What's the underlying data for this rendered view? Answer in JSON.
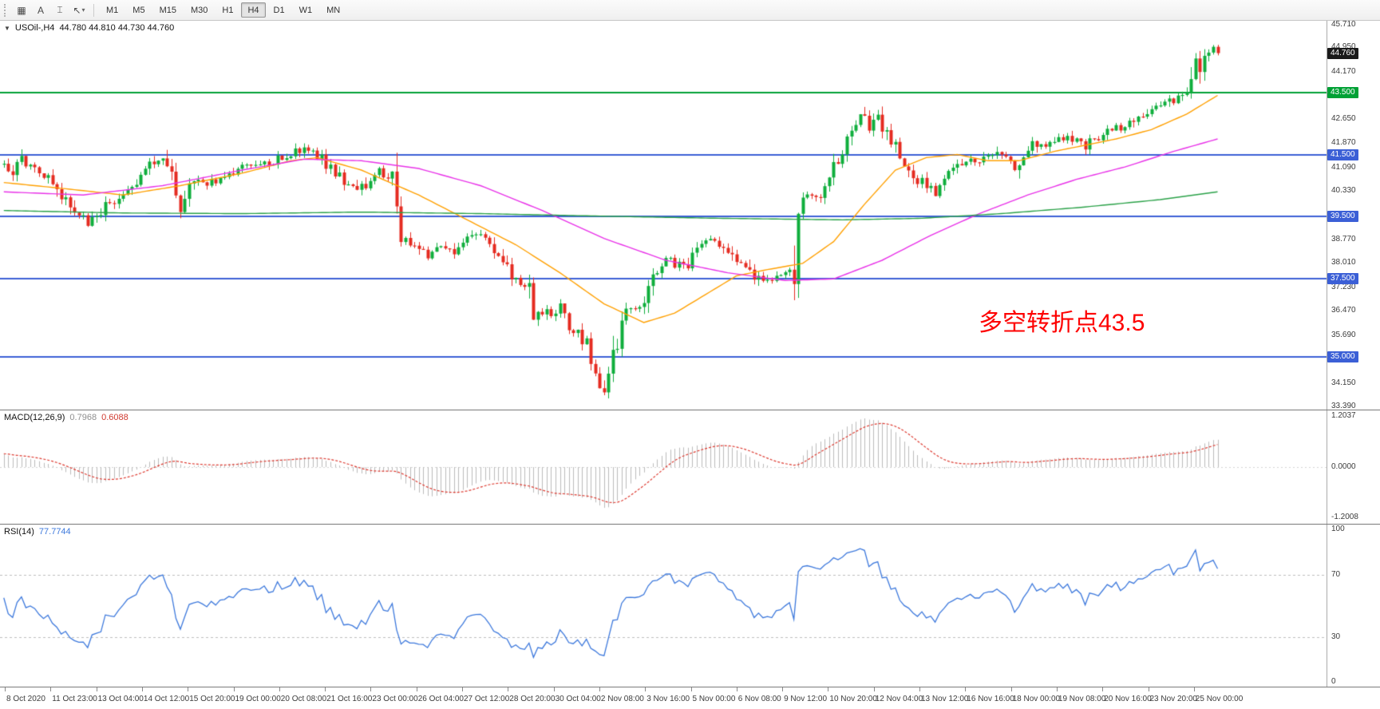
{
  "toolbar": {
    "tools": [
      {
        "name": "chart-grid",
        "glyph": "▦"
      },
      {
        "name": "text-label",
        "glyph": "A"
      },
      {
        "name": "text-cursor",
        "glyph": "⌶"
      },
      {
        "name": "arrow-objects",
        "glyph": "↖",
        "caret": "▾"
      }
    ],
    "timeframes": [
      "M1",
      "M5",
      "M15",
      "M30",
      "H1",
      "H4",
      "D1",
      "W1",
      "MN"
    ],
    "active_timeframe": "H4"
  },
  "chart": {
    "marker_glyph": "▼",
    "symbol_period": "USOil-,H4",
    "ohlc": "44.780 44.810 44.730 44.760"
  },
  "macd": {
    "label": "MACD(12,26,9)",
    "value_main": "0.7968",
    "value_signal": "0.6088",
    "scale": [
      "1.2037",
      "0.0000",
      "-1.2008"
    ],
    "histogram_color": "#BBBBBB",
    "signal_color": "#DD3A30"
  },
  "rsi": {
    "label": "RSI(14)",
    "value": "77.7744",
    "levels": [
      "100",
      "70",
      "30",
      "0"
    ],
    "line_color": "#3C78DC"
  },
  "price_axis": {
    "tick_labels": [
      "45.710",
      "44.950",
      "44.170",
      "42.650",
      "41.870",
      "41.090",
      "40.330",
      "38.770",
      "38.010",
      "37.230",
      "36.470",
      "35.690",
      "34.150",
      "33.390"
    ],
    "boxes": [
      {
        "label": "44.760",
        "color": "#1A1A1A",
        "name": "current-price-box"
      },
      {
        "label": "43.500",
        "color": "#00A135",
        "name": "hline-price-box"
      },
      {
        "label": "41.500",
        "color": "#3B5FD6",
        "name": "hline-price-box"
      },
      {
        "label": "39.500",
        "color": "#3B5FD6",
        "name": "hline-price-box"
      },
      {
        "label": "37.500",
        "color": "#3B5FD6",
        "name": "hline-price-box"
      },
      {
        "label": "35.000",
        "color": "#3B5FD6",
        "name": "hline-price-box"
      }
    ]
  },
  "chart_data": {
    "type": "candlestick",
    "symbol": "USOil-",
    "timeframe": "H4",
    "current_bar": {
      "open": 44.78,
      "high": 44.81,
      "low": 44.73,
      "close": 44.76
    },
    "last_close": 44.76,
    "bar_count": 276,
    "bar_spacing": 5.53,
    "up_color": "#0FAE3C",
    "down_color": "#E52B20",
    "y_axis": {
      "min": 33.3,
      "max": 45.8
    },
    "horizontal_lines": [
      {
        "price": 43.5,
        "color": "#00A135"
      },
      {
        "price": 41.5,
        "color": "#3B5FD6"
      },
      {
        "price": 39.5,
        "color": "#3B5FD6"
      },
      {
        "price": 37.5,
        "color": "#3B5FD6"
      },
      {
        "price": 35.0,
        "color": "#3B5FD6"
      }
    ],
    "annotation": {
      "text": "多空转折点43.5",
      "color": "#FE0000",
      "meaning": "bull/bear turning point 43.5"
    },
    "price_waypoints": [
      [
        0,
        41.2
      ],
      [
        2,
        41.0
      ],
      [
        4,
        41.4
      ],
      [
        6,
        41.1
      ],
      [
        8,
        40.9
      ],
      [
        11,
        40.6
      ],
      [
        14,
        40.0
      ],
      [
        17,
        39.5
      ],
      [
        19,
        39.3
      ],
      [
        21,
        39.5
      ],
      [
        23,
        39.9
      ],
      [
        27,
        40.2
      ],
      [
        30,
        40.6
      ],
      [
        32,
        41.0
      ],
      [
        34,
        41.3
      ],
      [
        36,
        41.4
      ],
      [
        38,
        40.9
      ],
      [
        40,
        39.7
      ],
      [
        43,
        40.7
      ],
      [
        46,
        40.5
      ],
      [
        50,
        40.8
      ],
      [
        53,
        41.1
      ],
      [
        57,
        41.1
      ],
      [
        60,
        41.2
      ],
      [
        63,
        41.4
      ],
      [
        66,
        41.6
      ],
      [
        68,
        41.8
      ],
      [
        70,
        41.6
      ],
      [
        73,
        41.2
      ],
      [
        75,
        40.9
      ],
      [
        78,
        40.5
      ],
      [
        80,
        40.3
      ],
      [
        82,
        40.6
      ],
      [
        84,
        41.0
      ],
      [
        86,
        40.9
      ],
      [
        88,
        40.7
      ],
      [
        90,
        38.9
      ],
      [
        93,
        38.6
      ],
      [
        96,
        38.3
      ],
      [
        99,
        38.5
      ],
      [
        102,
        38.4
      ],
      [
        104,
        38.8
      ],
      [
        106,
        39.0
      ],
      [
        108,
        38.9
      ],
      [
        111,
        38.4
      ],
      [
        113,
        38.0
      ],
      [
        115,
        37.6
      ],
      [
        117,
        37.4
      ],
      [
        119,
        37.2
      ],
      [
        120,
        36.2
      ],
      [
        122,
        36.5
      ],
      [
        124,
        36.3
      ],
      [
        126,
        36.6
      ],
      [
        128,
        36.0
      ],
      [
        130,
        35.8
      ],
      [
        132,
        35.4
      ],
      [
        133,
        34.8
      ],
      [
        134,
        34.3
      ],
      [
        136,
        33.9
      ],
      [
        137,
        34.3
      ],
      [
        139,
        35.5
      ],
      [
        140,
        36.3
      ],
      [
        142,
        36.6
      ],
      [
        144,
        36.6
      ],
      [
        146,
        37.2
      ],
      [
        148,
        37.9
      ],
      [
        150,
        38.2
      ],
      [
        152,
        38.0
      ],
      [
        154,
        37.8
      ],
      [
        156,
        38.3
      ],
      [
        158,
        38.7
      ],
      [
        160,
        38.9
      ],
      [
        162,
        38.6
      ],
      [
        164,
        38.4
      ],
      [
        166,
        38.1
      ],
      [
        168,
        38.0
      ],
      [
        170,
        37.6
      ],
      [
        172,
        37.3
      ],
      [
        174,
        37.4
      ],
      [
        176,
        37.6
      ],
      [
        179,
        37.8
      ],
      [
        180,
        39.9
      ],
      [
        182,
        40.1
      ],
      [
        184,
        40.1
      ],
      [
        186,
        40.5
      ],
      [
        188,
        41.1
      ],
      [
        190,
        41.7
      ],
      [
        192,
        42.3
      ],
      [
        194,
        42.9
      ],
      [
        196,
        42.4
      ],
      [
        198,
        42.7
      ],
      [
        200,
        42.2
      ],
      [
        202,
        41.7
      ],
      [
        203,
        41.3
      ],
      [
        205,
        41.0
      ],
      [
        207,
        40.7
      ],
      [
        209,
        40.5
      ],
      [
        211,
        40.3
      ],
      [
        213,
        40.6
      ],
      [
        215,
        41.0
      ],
      [
        217,
        41.3
      ],
      [
        219,
        41.5
      ],
      [
        221,
        41.3
      ],
      [
        223,
        41.4
      ],
      [
        225,
        41.5
      ],
      [
        227,
        41.3
      ],
      [
        229,
        41.1
      ],
      [
        231,
        41.6
      ],
      [
        233,
        41.9
      ],
      [
        235,
        41.7
      ],
      [
        237,
        41.8
      ],
      [
        239,
        42.0
      ],
      [
        241,
        42.1
      ],
      [
        243,
        41.9
      ],
      [
        245,
        41.8
      ],
      [
        247,
        42.0
      ],
      [
        249,
        42.1
      ],
      [
        251,
        42.3
      ],
      [
        253,
        42.4
      ],
      [
        255,
        42.5
      ],
      [
        257,
        42.7
      ],
      [
        259,
        42.9
      ],
      [
        261,
        43.0
      ],
      [
        263,
        43.1
      ],
      [
        265,
        43.3
      ],
      [
        267,
        43.5
      ],
      [
        269,
        43.8
      ],
      [
        270,
        44.9
      ],
      [
        271,
        44.1
      ],
      [
        272,
        44.5
      ],
      [
        273,
        44.75
      ],
      [
        274,
        44.85
      ],
      [
        275,
        44.76
      ]
    ],
    "moving_averages": [
      {
        "name": "fast-ma",
        "color": "#FFA000",
        "points": [
          [
            0,
            40.6
          ],
          [
            14,
            40.4
          ],
          [
            27,
            40.2
          ],
          [
            40,
            40.5
          ],
          [
            54,
            40.9
          ],
          [
            65,
            41.3
          ],
          [
            71,
            41.4
          ],
          [
            81,
            41.0
          ],
          [
            94,
            40.2
          ],
          [
            105,
            39.4
          ],
          [
            116,
            38.6
          ],
          [
            126,
            37.7
          ],
          [
            136,
            36.7
          ],
          [
            145,
            36.1
          ],
          [
            152,
            36.4
          ],
          [
            159,
            37.0
          ],
          [
            166,
            37.6
          ],
          [
            173,
            37.8
          ],
          [
            181,
            38.0
          ],
          [
            188,
            38.7
          ],
          [
            195,
            39.9
          ],
          [
            202,
            41.0
          ],
          [
            209,
            41.4
          ],
          [
            216,
            41.5
          ],
          [
            223,
            41.3
          ],
          [
            230,
            41.3
          ],
          [
            238,
            41.6
          ],
          [
            245,
            41.8
          ],
          [
            252,
            42.0
          ],
          [
            260,
            42.3
          ],
          [
            268,
            42.8
          ],
          [
            275,
            43.4
          ]
        ]
      },
      {
        "name": "slow-ma",
        "color": "#E832E8",
        "points": [
          [
            0,
            40.3
          ],
          [
            18,
            40.2
          ],
          [
            36,
            40.5
          ],
          [
            54,
            41.0
          ],
          [
            68,
            41.35
          ],
          [
            81,
            41.3
          ],
          [
            94,
            41.05
          ],
          [
            108,
            40.5
          ],
          [
            122,
            39.7
          ],
          [
            136,
            38.8
          ],
          [
            150,
            38.1
          ],
          [
            164,
            37.7
          ],
          [
            177,
            37.45
          ],
          [
            188,
            37.5
          ],
          [
            199,
            38.1
          ],
          [
            210,
            38.9
          ],
          [
            221,
            39.6
          ],
          [
            232,
            40.2
          ],
          [
            243,
            40.7
          ],
          [
            254,
            41.1
          ],
          [
            265,
            41.6
          ],
          [
            275,
            42.0
          ]
        ]
      },
      {
        "name": "long-ma",
        "color": "#2AA148",
        "points": [
          [
            0,
            39.7
          ],
          [
            27,
            39.62
          ],
          [
            54,
            39.6
          ],
          [
            81,
            39.65
          ],
          [
            108,
            39.6
          ],
          [
            135,
            39.52
          ],
          [
            162,
            39.45
          ],
          [
            190,
            39.4
          ],
          [
            208,
            39.45
          ],
          [
            226,
            39.6
          ],
          [
            244,
            39.8
          ],
          [
            262,
            40.05
          ],
          [
            275,
            40.3
          ]
        ]
      }
    ],
    "time_labels": [
      "8 Oct 2020",
      "11 Oct 23:00",
      "13 Oct 04:00",
      "14 Oct 12:00",
      "15 Oct 20:00",
      "19 Oct 00:00",
      "20 Oct 08:00",
      "21 Oct 16:00",
      "23 Oct 00:00",
      "26 Oct 04:00",
      "27 Oct 12:00",
      "28 Oct 20:00",
      "30 Oct 04:00",
      "2 Nov 08:00",
      "3 Nov 16:00",
      "5 Nov 00:00",
      "6 Nov 08:00",
      "9 Nov 12:00",
      "10 Nov 20:00",
      "12 Nov 04:00",
      "13 Nov 12:00",
      "16 Nov 16:00",
      "18 Nov 00:00",
      "19 Nov 08:00",
      "20 Nov 16:00",
      "23 Nov 20:00",
      "25 Nov 00:00"
    ]
  }
}
